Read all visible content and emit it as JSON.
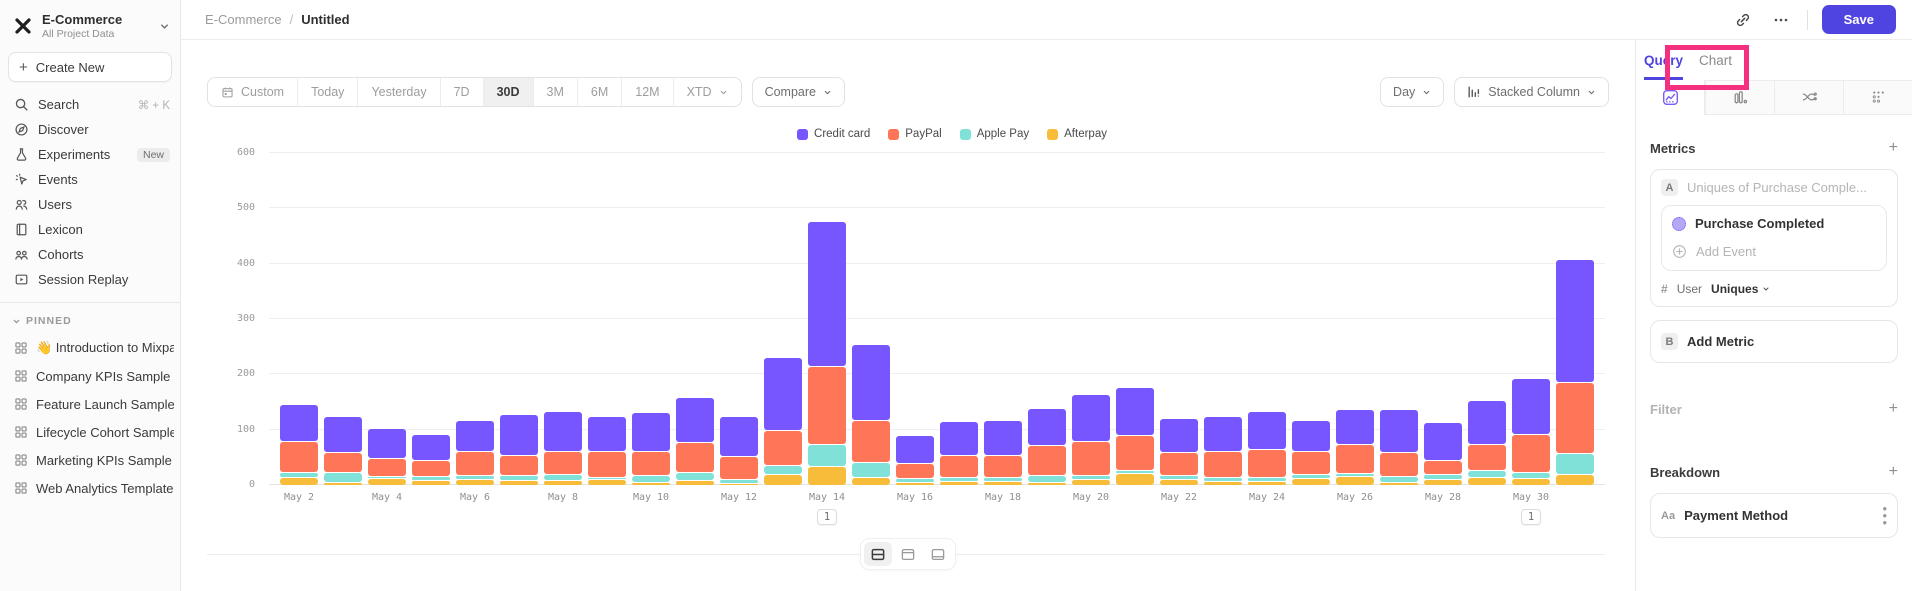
{
  "sidebar": {
    "project": {
      "name": "E-Commerce",
      "subtitle": "All Project Data"
    },
    "create_new_label": "Create New",
    "items": [
      {
        "label": "Search",
        "shortcut": "⌘ + K"
      },
      {
        "label": "Discover"
      },
      {
        "label": "Experiments",
        "badge": "New"
      },
      {
        "label": "Events"
      },
      {
        "label": "Users"
      },
      {
        "label": "Lexicon"
      },
      {
        "label": "Cohorts"
      },
      {
        "label": "Session Replay"
      }
    ],
    "pinned": {
      "header": "PINNED",
      "items": [
        "👋 Introduction to Mixpanel Bo",
        "Company KPIs Sample Templat",
        "Feature Launch Sample Templa",
        "Lifecycle Cohort Sample Temp",
        "Marketing KPIs Sample Templat",
        "Web Analytics Template"
      ]
    }
  },
  "header": {
    "breadcrumb_root": "E-Commerce",
    "breadcrumb_sep": "/",
    "breadcrumb_current": "Untitled",
    "save_label": "Save"
  },
  "toolbar": {
    "date_ranges": [
      "Custom",
      "Today",
      "Yesterday",
      "7D",
      "30D",
      "3M",
      "6M",
      "12M",
      "XTD"
    ],
    "selected_range": "30D",
    "compare_label": "Compare",
    "granularity_label": "Day",
    "chart_type_label": "Stacked Column"
  },
  "right_panel": {
    "tabs": {
      "query": "Query",
      "chart": "Chart"
    },
    "icon_tabs": [
      "insights-icon",
      "funnels-bars-icon",
      "flows-icon",
      "retention-icon"
    ],
    "metrics": {
      "title": "Metrics",
      "row_a_letter": "A",
      "row_a_placeholder": "Uniques of Purchase Comple...",
      "event_name": "Purchase Completed",
      "add_event_label": "Add Event",
      "hash": "#",
      "entity": "User",
      "aggregation": "Uniques",
      "row_b_letter": "B",
      "add_metric_label": "Add Metric"
    },
    "filter": {
      "title": "Filter"
    },
    "breakdown": {
      "title": "Breakdown",
      "property_type": "Aa",
      "property": "Payment Method"
    }
  },
  "chart_data": {
    "type": "bar",
    "stacked": true,
    "categories": [
      "May 2",
      "May 3",
      "May 4",
      "May 5",
      "May 6",
      "May 7",
      "May 8",
      "May 9",
      "May 10",
      "May 11",
      "May 12",
      "May 13",
      "May 14",
      "May 15",
      "May 16",
      "May 17",
      "May 18",
      "May 19",
      "May 20",
      "May 21",
      "May 22",
      "May 23",
      "May 24",
      "May 25",
      "May 26",
      "May 27",
      "May 28",
      "May 29",
      "May 30",
      "May 31"
    ],
    "x_label_every": 2,
    "series": [
      {
        "name": "Credit card",
        "color": "#7856ff",
        "values": [
          66,
          64,
          55,
          47,
          56,
          73,
          71,
          62,
          70,
          82,
          72,
          132,
          262,
          137,
          50,
          60,
          63,
          68,
          85,
          88,
          62,
          63,
          67,
          56,
          63,
          77,
          68,
          80,
          100,
          222
        ]
      },
      {
        "name": "PayPal",
        "color": "#ff7557",
        "values": [
          57,
          37,
          32,
          29,
          44,
          37,
          42,
          47,
          44,
          55,
          42,
          63,
          140,
          76,
          28,
          40,
          40,
          54,
          62,
          62,
          42,
          48,
          52,
          42,
          52,
          43,
          25,
          47,
          70,
          130
        ]
      },
      {
        "name": "Apple Pay",
        "color": "#80e1d9",
        "values": [
          8,
          17,
          4,
          7,
          7,
          9,
          11,
          4,
          12,
          14,
          6,
          17,
          40,
          28,
          7,
          8,
          7,
          12,
          8,
          6,
          8,
          6,
          6,
          8,
          6,
          12,
          10,
          13,
          10,
          37
        ]
      },
      {
        "name": "Afterpay",
        "color": "#f8bc3b",
        "values": [
          15,
          6,
          12,
          9,
          11,
          9,
          9,
          11,
          6,
          9,
          4,
          20,
          35,
          14,
          5,
          7,
          8,
          6,
          10,
          22,
          10,
          8,
          8,
          12,
          16,
          5,
          10,
          14,
          13,
          20
        ]
      }
    ],
    "ylim": [
      0,
      600
    ],
    "yticks": [
      0,
      100,
      200,
      300,
      400,
      500,
      600
    ],
    "legend_position": "top",
    "annotations": [
      {
        "category": "May 14",
        "label": "1"
      },
      {
        "category": "May 30",
        "label": "1"
      }
    ]
  },
  "colors": {
    "accent": "#4f44e0",
    "annotation_highlight": "#f5317f"
  }
}
